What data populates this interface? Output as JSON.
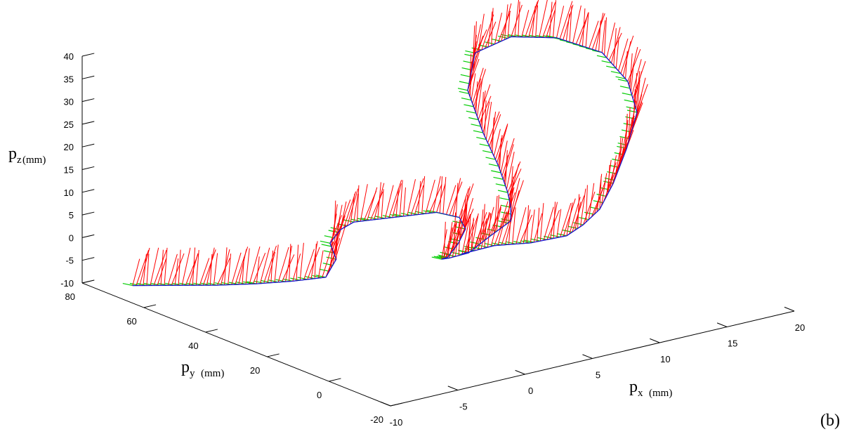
{
  "panel_label": "(b)",
  "chart_data": {
    "type": "line3d",
    "axes": {
      "x": {
        "label_main": "p",
        "label_sub": "x",
        "label_unit": "(mm)",
        "ticks": [
          "-10",
          "-5",
          "0",
          "5",
          "10",
          "15",
          "20"
        ],
        "range": [
          -10,
          20
        ]
      },
      "y": {
        "label_main": "p",
        "label_sub": "y",
        "label_unit": "(mm)",
        "ticks": [
          "-20",
          "0",
          "20",
          "40",
          "60",
          "80"
        ],
        "range": [
          -20,
          80
        ]
      },
      "z": {
        "label_main": "p",
        "label_sub": "z",
        "label_unit": "(mm)",
        "ticks": [
          "-10",
          "-5",
          "0",
          "5",
          "10",
          "15",
          "20",
          "25",
          "30",
          "35",
          "40"
        ],
        "range": [
          -10,
          40
        ]
      }
    },
    "colors": {
      "path": "#1a1acc",
      "z_frame": "#ff0000",
      "y_frame": "#00cc00"
    },
    "trajectory": [
      [
        -9,
        68,
        -8
      ],
      [
        -7,
        63,
        -8
      ],
      [
        -5,
        58,
        -8
      ],
      [
        -3,
        54,
        -8
      ],
      [
        -1,
        51,
        -8
      ],
      [
        1,
        49,
        -8
      ],
      [
        2,
        50,
        -5
      ],
      [
        2,
        52,
        -2
      ],
      [
        3,
        53,
        0
      ],
      [
        4,
        53,
        1
      ],
      [
        5,
        52,
        1
      ],
      [
        7,
        50,
        1
      ],
      [
        9,
        48,
        1
      ],
      [
        10,
        45,
        0
      ],
      [
        10,
        43,
        -2
      ],
      [
        9,
        41,
        -4
      ],
      [
        8,
        40,
        -6
      ],
      [
        8,
        42,
        -7
      ],
      [
        9,
        44,
        -8
      ],
      [
        10,
        42,
        -7
      ],
      [
        11,
        39,
        -3
      ],
      [
        12,
        37,
        0
      ],
      [
        12,
        37,
        3
      ],
      [
        12,
        38,
        6
      ],
      [
        12,
        41,
        11
      ],
      [
        12,
        46,
        17
      ],
      [
        12,
        51,
        25
      ],
      [
        13,
        53,
        32
      ],
      [
        15,
        50,
        35
      ],
      [
        17,
        44,
        35
      ],
      [
        19,
        38,
        32
      ],
      [
        20,
        34,
        26
      ],
      [
        20,
        31,
        20
      ],
      [
        19,
        30,
        13
      ],
      [
        18,
        30,
        6
      ],
      [
        17,
        30,
        1
      ],
      [
        16,
        31,
        -2
      ],
      [
        15,
        32,
        -4
      ],
      [
        13,
        35,
        -5
      ],
      [
        11,
        38,
        -5
      ],
      [
        9,
        40,
        -6
      ]
    ]
  }
}
